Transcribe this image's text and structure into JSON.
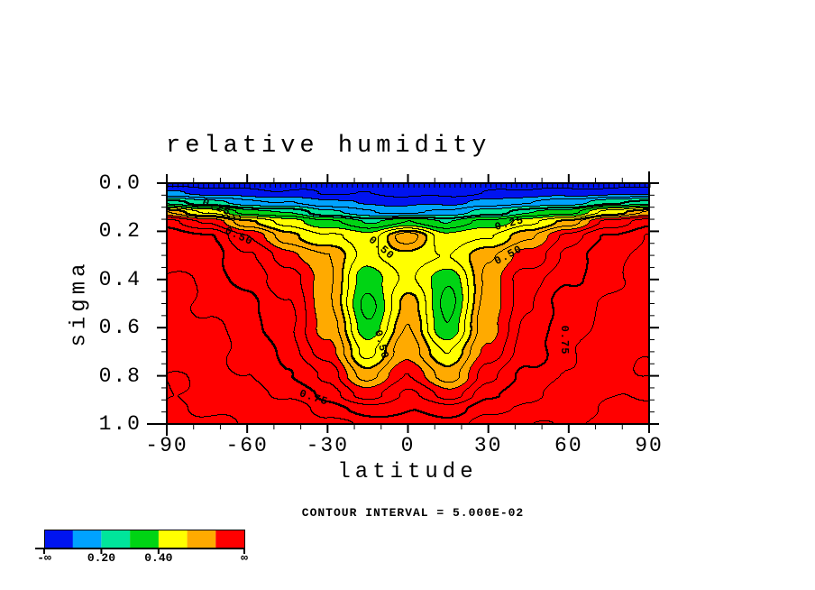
{
  "title": "relative humidity",
  "footnote": "CONTOUR INTERVAL = 5.000E-02",
  "axes": {
    "x": {
      "title": "latitude",
      "range": [
        -90,
        90
      ],
      "major_ticks": [
        {
          "label": "-90",
          "value": -90
        },
        {
          "label": "-60",
          "value": -60
        },
        {
          "label": "-30",
          "value": -30
        },
        {
          "label": "0",
          "value": 0
        },
        {
          "label": "30",
          "value": 30
        },
        {
          "label": "60",
          "value": 60
        },
        {
          "label": "90",
          "value": 90
        }
      ],
      "minor_step": 10
    },
    "y": {
      "title": "sigma",
      "range": [
        0,
        1
      ],
      "major_ticks": [
        {
          "label": "0.0",
          "value": 0.0
        },
        {
          "label": "0.2",
          "value": 0.2
        },
        {
          "label": "0.4",
          "value": 0.4
        },
        {
          "label": "0.6",
          "value": 0.6
        },
        {
          "label": "0.8",
          "value": 0.8
        },
        {
          "label": "1.0",
          "value": 1.0
        }
      ],
      "minor_step": 0.05
    }
  },
  "colorbar": {
    "colors": [
      "#0014f0",
      "#00a2ff",
      "#00e59b",
      "#00d414",
      "#ffff00",
      "#ffaa00",
      "#ff0000"
    ],
    "tick_labels": [
      {
        "label": "-∞",
        "boundary": 0
      },
      {
        "label": "0.20",
        "boundary": 2
      },
      {
        "label": "0.40",
        "boundary": 4
      },
      {
        "label": "∞",
        "boundary": 7
      }
    ],
    "tick_boundaries": [
      0,
      2,
      4,
      7
    ]
  },
  "chart_data": {
    "type": "filled-contour",
    "title": "relative humidity",
    "xlabel": "latitude",
    "ylabel": "sigma",
    "xlim": [
      -90,
      90
    ],
    "ylim_inverted": [
      0,
      1
    ],
    "contour_interval": 0.05,
    "major_line_interval": 0.25,
    "fill_levels": [
      0.1,
      0.2,
      0.3,
      0.4,
      0.5,
      0.6
    ],
    "fill_colors": [
      "#0014f0",
      "#00a2ff",
      "#00e59b",
      "#00d414",
      "#ffff00",
      "#ffaa00",
      "#ff0000"
    ],
    "x_lats": [
      -90,
      -75,
      -60,
      -45,
      -30,
      -15,
      0,
      15,
      30,
      45,
      60,
      75,
      90
    ],
    "y_sigma_levels": [
      0.0,
      0.04,
      0.08,
      0.12,
      0.16,
      0.22,
      0.3,
      0.4,
      0.5,
      0.6,
      0.7,
      0.8,
      0.88,
      0.94,
      1.0
    ],
    "values": [
      [
        0.02,
        0.02,
        0.02,
        0.02,
        0.02,
        0.02,
        0.02,
        0.02,
        0.02,
        0.02,
        0.02,
        0.02,
        0.02
      ],
      [
        0.1,
        0.08,
        0.07,
        0.06,
        0.05,
        0.04,
        0.03,
        0.04,
        0.05,
        0.06,
        0.07,
        0.08,
        0.1
      ],
      [
        0.28,
        0.22,
        0.16,
        0.15,
        0.12,
        0.09,
        0.08,
        0.09,
        0.12,
        0.15,
        0.17,
        0.23,
        0.29
      ],
      [
        0.55,
        0.45,
        0.32,
        0.29,
        0.22,
        0.16,
        0.13,
        0.16,
        0.22,
        0.3,
        0.33,
        0.46,
        0.56
      ],
      [
        0.72,
        0.65,
        0.52,
        0.42,
        0.36,
        0.3,
        0.35,
        0.3,
        0.36,
        0.43,
        0.53,
        0.66,
        0.73
      ],
      [
        0.79,
        0.75,
        0.66,
        0.52,
        0.45,
        0.42,
        0.58,
        0.42,
        0.45,
        0.53,
        0.67,
        0.76,
        0.8
      ],
      [
        0.8,
        0.78,
        0.7,
        0.62,
        0.55,
        0.44,
        0.48,
        0.44,
        0.55,
        0.62,
        0.71,
        0.78,
        0.81
      ],
      [
        0.8,
        0.79,
        0.73,
        0.68,
        0.56,
        0.36,
        0.47,
        0.36,
        0.56,
        0.68,
        0.74,
        0.79,
        0.81
      ],
      [
        0.82,
        0.8,
        0.76,
        0.7,
        0.57,
        0.33,
        0.52,
        0.33,
        0.57,
        0.7,
        0.77,
        0.8,
        0.82
      ],
      [
        0.83,
        0.81,
        0.78,
        0.71,
        0.58,
        0.36,
        0.55,
        0.36,
        0.58,
        0.71,
        0.78,
        0.81,
        0.83
      ],
      [
        0.84,
        0.82,
        0.79,
        0.73,
        0.62,
        0.44,
        0.58,
        0.44,
        0.62,
        0.73,
        0.79,
        0.82,
        0.84
      ],
      [
        0.85,
        0.83,
        0.8,
        0.76,
        0.68,
        0.52,
        0.66,
        0.52,
        0.68,
        0.76,
        0.8,
        0.83,
        0.85
      ],
      [
        0.85,
        0.84,
        0.82,
        0.79,
        0.74,
        0.62,
        0.71,
        0.62,
        0.74,
        0.79,
        0.82,
        0.84,
        0.85
      ],
      [
        0.86,
        0.85,
        0.84,
        0.82,
        0.78,
        0.72,
        0.75,
        0.72,
        0.78,
        0.82,
        0.84,
        0.85,
        0.86
      ],
      [
        0.86,
        0.86,
        0.85,
        0.84,
        0.81,
        0.78,
        0.79,
        0.78,
        0.81,
        0.84,
        0.85,
        0.86,
        0.86
      ]
    ],
    "contour_labels": [
      {
        "text": "0.25",
        "lat": -71.5,
        "sigma": 0.1,
        "rot": 22
      },
      {
        "text": "0.25",
        "lat": 38.0,
        "sigma": 0.17,
        "rot": -15
      },
      {
        "text": "0.50",
        "lat": -63.0,
        "sigma": 0.22,
        "rot": 25
      },
      {
        "text": "0.50",
        "lat": -10.0,
        "sigma": 0.27,
        "rot": 40
      },
      {
        "text": "0.50",
        "lat": 37.5,
        "sigma": 0.3,
        "rot": -28
      },
      {
        "text": "0.50",
        "lat": -10.0,
        "sigma": 0.67,
        "rot": 75
      },
      {
        "text": "0.75",
        "lat": -35.0,
        "sigma": 0.89,
        "rot": 18
      },
      {
        "text": "0.75",
        "lat": 58.5,
        "sigma": 0.65,
        "rot": 90
      }
    ]
  }
}
